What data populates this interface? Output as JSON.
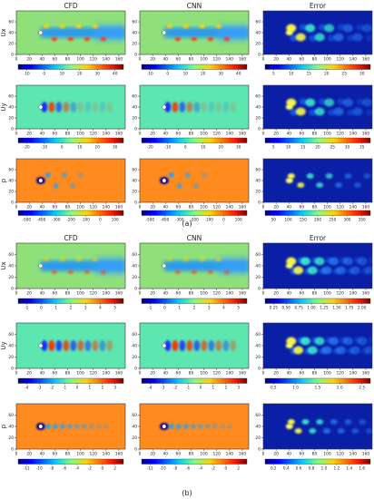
{
  "figure": {
    "part_labels": [
      "(a)",
      "(b)"
    ],
    "column_titles": [
      "CFD",
      "CNN",
      "Error"
    ],
    "row_labels": [
      "Ux",
      "Uy",
      "p"
    ]
  },
  "chart_data": [
    {
      "type": "heatmap",
      "part": "(a)",
      "columns": [
        "CFD",
        "CNN",
        "Error"
      ],
      "rows": [
        {
          "field": "Ux",
          "x_ticks": [
            0,
            20,
            40,
            60,
            80,
            100,
            120,
            140,
            160
          ],
          "y_ticks": [
            0,
            20,
            40,
            60
          ],
          "colorbar_cfd_cnn": {
            "ticks": [
              "-10",
              "0",
              "10",
              "20",
              "30",
              "40"
            ]
          },
          "colorbar_error": {
            "ticks": [
              "5",
              "10",
              "15",
              "20",
              "25",
              "30"
            ]
          }
        },
        {
          "field": "Uy",
          "x_ticks": [
            0,
            20,
            40,
            60,
            80,
            100,
            120,
            140,
            160
          ],
          "y_ticks": [
            0,
            20,
            40,
            60
          ],
          "colorbar_cfd_cnn": {
            "ticks": [
              "-20",
              "-10",
              "0",
              "10",
              "20",
              "30"
            ]
          },
          "colorbar_error": {
            "ticks": [
              "5",
              "10",
              "15",
              "20",
              "25",
              "30",
              "35"
            ]
          }
        },
        {
          "field": "p",
          "x_ticks": [
            0,
            20,
            40,
            60,
            80,
            100,
            120,
            140,
            160
          ],
          "y_ticks": [
            0,
            20,
            40,
            60
          ],
          "colorbar_cfd_cnn": {
            "ticks": [
              "-500",
              "-400",
              "-300",
              "-200",
              "-100",
              "0",
              "100"
            ]
          },
          "colorbar_error": {
            "ticks": [
              "50",
              "100",
              "150",
              "200",
              "250",
              "300",
              "350"
            ]
          }
        }
      ]
    },
    {
      "type": "heatmap",
      "part": "(b)",
      "columns": [
        "CFD",
        "CNN",
        "Error"
      ],
      "rows": [
        {
          "field": "Ux",
          "x_ticks": [
            0,
            20,
            40,
            60,
            80,
            100,
            120,
            140,
            160
          ],
          "y_ticks": [
            0,
            20,
            40,
            60
          ],
          "colorbar_cfd_cnn": {
            "ticks": [
              "-1",
              "0",
              "1",
              "2",
              "3",
              "4",
              "5"
            ]
          },
          "colorbar_error": {
            "ticks": [
              "0.25",
              "0.50",
              "0.75",
              "1.00",
              "1.25",
              "1.50",
              "1.75",
              "2.00"
            ]
          }
        },
        {
          "field": "Uy",
          "x_ticks": [
            0,
            20,
            40,
            60,
            80,
            100,
            120,
            140,
            160
          ],
          "y_ticks": [
            0,
            20,
            40,
            60
          ],
          "colorbar_cfd_cnn": {
            "ticks": [
              "-4",
              "-3",
              "-2",
              "-1",
              "0",
              "1",
              "2",
              "3"
            ]
          },
          "colorbar_error": {
            "ticks": [
              "0.5",
              "1.0",
              "1.5",
              "2.0",
              "2.5"
            ]
          }
        },
        {
          "field": "p",
          "x_ticks": [
            0,
            20,
            40,
            60,
            80,
            100,
            120,
            140,
            160
          ],
          "y_ticks": [
            0,
            20,
            40,
            60
          ],
          "colorbar_cfd_cnn": {
            "ticks": [
              "-12",
              "-10",
              "-8",
              "-6",
              "-4",
              "-2",
              "0",
              "2"
            ]
          },
          "colorbar_error": {
            "ticks": [
              "0.2",
              "0.4",
              "0.6",
              "0.8",
              "1.0",
              "1.2",
              "1.4",
              "1.6"
            ]
          }
        }
      ]
    }
  ],
  "colors": {
    "jet": [
      "#00007f",
      "#0000ff",
      "#007fff",
      "#00ffff",
      "#7fff7f",
      "#ffff00",
      "#ff7f00",
      "#ff0000",
      "#7f0000"
    ],
    "cfd_background_ux": "#8fe07a",
    "cfd_background_uy": "#5ee6b0",
    "cfd_background_p": "#ff8a1e",
    "error_background": "#0a1fa6",
    "wake_ux": "#1e90ff"
  }
}
